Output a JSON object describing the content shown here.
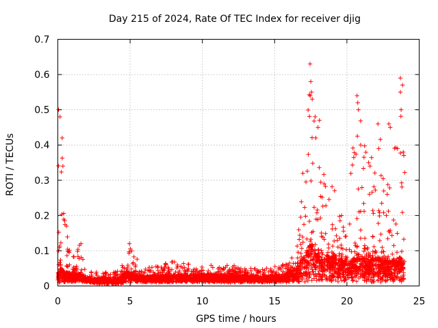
{
  "chart_data": {
    "type": "scatter",
    "title": "Day 215 of 2024, Rate Of TEC Index for receiver djig",
    "xlabel": "GPS time / hours",
    "ylabel": "ROTI / TECUs",
    "xlim": [
      0,
      25
    ],
    "ylim": [
      0,
      0.7
    ],
    "xticks": [
      "0",
      "5",
      "10",
      "15",
      "20",
      "25"
    ],
    "yticks": [
      "0",
      "0.1",
      "0.2",
      "0.3",
      "0.4",
      "0.5",
      "0.6",
      "0.7"
    ],
    "grid": true,
    "marker": "plus",
    "color": "#ff0000",
    "envelope": [
      {
        "x": 0.0,
        "low": 0.01,
        "base": 0.04,
        "high": 0.5
      },
      {
        "x": 0.2,
        "low": 0.01,
        "base": 0.05,
        "high": 0.48
      },
      {
        "x": 0.5,
        "low": 0.01,
        "base": 0.04,
        "high": 0.17
      },
      {
        "x": 1.0,
        "low": 0.01,
        "base": 0.03,
        "high": 0.08
      },
      {
        "x": 1.5,
        "low": 0.01,
        "base": 0.04,
        "high": 0.12
      },
      {
        "x": 2.0,
        "low": 0.01,
        "base": 0.02,
        "high": 0.04
      },
      {
        "x": 3.0,
        "low": 0.005,
        "base": 0.02,
        "high": 0.04
      },
      {
        "x": 4.0,
        "low": 0.005,
        "base": 0.02,
        "high": 0.04
      },
      {
        "x": 4.9,
        "low": 0.01,
        "base": 0.04,
        "high": 0.12
      },
      {
        "x": 6.0,
        "low": 0.01,
        "base": 0.025,
        "high": 0.05
      },
      {
        "x": 8.0,
        "low": 0.01,
        "base": 0.03,
        "high": 0.07
      },
      {
        "x": 10.0,
        "low": 0.01,
        "base": 0.03,
        "high": 0.06
      },
      {
        "x": 12.0,
        "low": 0.01,
        "base": 0.03,
        "high": 0.06
      },
      {
        "x": 14.0,
        "low": 0.01,
        "base": 0.025,
        "high": 0.05
      },
      {
        "x": 15.5,
        "low": 0.01,
        "base": 0.03,
        "high": 0.06
      },
      {
        "x": 16.5,
        "low": 0.01,
        "base": 0.05,
        "high": 0.1
      },
      {
        "x": 17.0,
        "low": 0.01,
        "base": 0.08,
        "high": 0.3
      },
      {
        "x": 17.5,
        "low": 0.01,
        "base": 0.12,
        "high": 0.63
      },
      {
        "x": 18.0,
        "low": 0.01,
        "base": 0.1,
        "high": 0.47
      },
      {
        "x": 19.0,
        "low": 0.01,
        "base": 0.08,
        "high": 0.3
      },
      {
        "x": 20.0,
        "low": 0.01,
        "base": 0.07,
        "high": 0.2
      },
      {
        "x": 20.7,
        "low": 0.01,
        "base": 0.08,
        "high": 0.54
      },
      {
        "x": 21.5,
        "low": 0.01,
        "base": 0.08,
        "high": 0.35
      },
      {
        "x": 22.2,
        "low": 0.01,
        "base": 0.08,
        "high": 0.46
      },
      {
        "x": 23.0,
        "low": 0.01,
        "base": 0.07,
        "high": 0.3
      },
      {
        "x": 23.7,
        "low": 0.01,
        "base": 0.08,
        "high": 0.59
      },
      {
        "x": 24.0,
        "low": 0.01,
        "base": 0.06,
        "high": 0.38
      }
    ],
    "notable_points": [
      {
        "x": 0.05,
        "y": 0.5
      },
      {
        "x": 0.15,
        "y": 0.48
      },
      {
        "x": 0.3,
        "y": 0.42
      },
      {
        "x": 0.35,
        "y": 0.34
      },
      {
        "x": 0.6,
        "y": 0.17
      },
      {
        "x": 1.6,
        "y": 0.12
      },
      {
        "x": 4.95,
        "y": 0.12
      },
      {
        "x": 16.95,
        "y": 0.32
      },
      {
        "x": 17.45,
        "y": 0.63
      },
      {
        "x": 17.5,
        "y": 0.58
      },
      {
        "x": 17.55,
        "y": 0.55
      },
      {
        "x": 17.6,
        "y": 0.53
      },
      {
        "x": 18.1,
        "y": 0.47
      },
      {
        "x": 18.0,
        "y": 0.45
      },
      {
        "x": 17.85,
        "y": 0.42
      },
      {
        "x": 20.7,
        "y": 0.54
      },
      {
        "x": 20.75,
        "y": 0.52
      },
      {
        "x": 20.8,
        "y": 0.5
      },
      {
        "x": 20.95,
        "y": 0.4
      },
      {
        "x": 21.5,
        "y": 0.35
      },
      {
        "x": 21.6,
        "y": 0.34
      },
      {
        "x": 22.15,
        "y": 0.46
      },
      {
        "x": 22.2,
        "y": 0.39
      },
      {
        "x": 22.9,
        "y": 0.46
      },
      {
        "x": 23.0,
        "y": 0.45
      },
      {
        "x": 23.7,
        "y": 0.59
      },
      {
        "x": 23.85,
        "y": 0.57
      },
      {
        "x": 23.7,
        "y": 0.55
      },
      {
        "x": 23.75,
        "y": 0.5
      },
      {
        "x": 23.5,
        "y": 0.39
      },
      {
        "x": 23.9,
        "y": 0.38
      }
    ]
  }
}
